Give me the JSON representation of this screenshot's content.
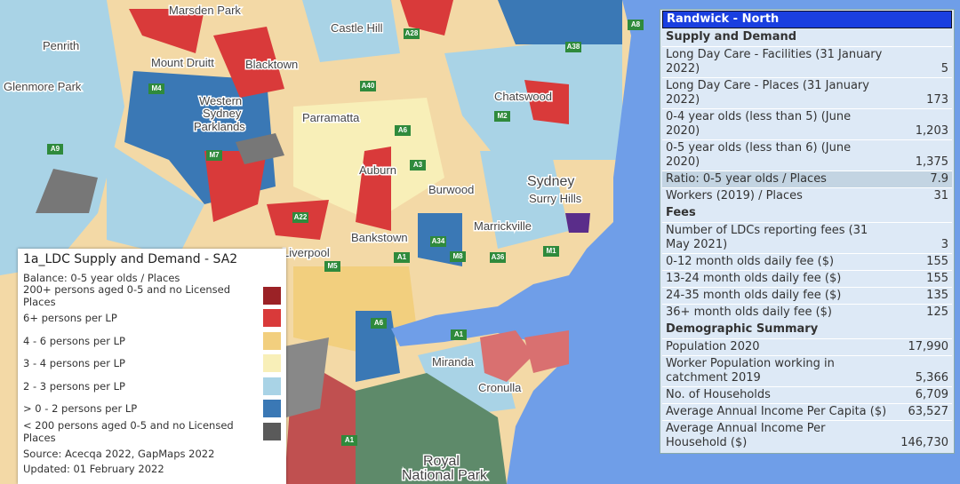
{
  "map": {
    "places": [
      "Marsden Park",
      "Castle Hill",
      "Penrith",
      "Mount Druitt",
      "Blacktown",
      "Glenmore Park",
      "Western",
      "Sydney",
      "Parklands",
      "Parramatta",
      "Chatswood",
      "Sydney",
      "Auburn",
      "Burwood",
      "Surry Hills",
      "Bankstown",
      "Marrickville",
      "Liverpool",
      "Miranda",
      "Cronulla",
      "Royal",
      "National Park"
    ],
    "roads": [
      "A9",
      "A28",
      "A38",
      "A8",
      "M4",
      "M7",
      "A40",
      "A6",
      "M2",
      "A3",
      "A22",
      "M5",
      "M8",
      "M1",
      "A34",
      "A36",
      "A1",
      "A6",
      "A1",
      "A1"
    ]
  },
  "legend": {
    "title": "1a_LDC Supply and Demand - SA2",
    "subtitle": "Balance: 0-5 year olds / Places",
    "items": [
      {
        "label": "200+ persons aged 0-5 and no Licensed Places",
        "color": "#9b2226"
      },
      {
        "label": "6+ persons per LP",
        "color": "#d93a3a"
      },
      {
        "label": "4 - 6 persons per LP",
        "color": "#f2cf7e"
      },
      {
        "label": "3 - 4 persons per LP",
        "color": "#f8efb8"
      },
      {
        "label": "2 - 3 persons per LP",
        "color": "#a9d3e6"
      },
      {
        "label": "> 0 - 2 persons per LP",
        "color": "#3a78b5"
      },
      {
        "label": "< 200 persons aged 0-5 and no Licensed Places",
        "color": "#5a5a5a"
      }
    ],
    "source": "Source: Acecqa 2022, GapMaps 2022",
    "updated": "Updated: 01 February 2022"
  },
  "panel": {
    "title": "Randwick - North",
    "sections": [
      {
        "heading": "Supply and Demand",
        "rows": [
          {
            "label": "Long Day Care - Facilities (31 January 2022)",
            "value": "5"
          },
          {
            "label": "Long Day Care - Places (31 January 2022)",
            "value": "173"
          },
          {
            "label": "0-4 year olds (less than 5) (June 2020)",
            "value": "1,203"
          },
          {
            "label": "0-5 year olds (less than 6) (June 2020)",
            "value": "1,375"
          },
          {
            "label": "Ratio: 0-5 year olds / Places",
            "value": "7.9",
            "highlight": true
          },
          {
            "label": "Workers (2019) / Places",
            "value": "31"
          }
        ]
      },
      {
        "heading": "Fees",
        "rows": [
          {
            "label": "Number of LDCs reporting fees (31 May 2021)",
            "value": "3"
          },
          {
            "label": "0-12 month olds daily fee ($)",
            "value": "155"
          },
          {
            "label": "13-24 month olds daily fee ($)",
            "value": "155"
          },
          {
            "label": "24-35 month olds daily fee ($)",
            "value": "135"
          },
          {
            "label": "36+ month olds daily fee ($)",
            "value": "125"
          }
        ]
      },
      {
        "heading": "Demographic Summary",
        "rows": [
          {
            "label": "Population 2020",
            "value": "17,990"
          },
          {
            "label": "Worker Population working in catchment 2019",
            "value": "5,366"
          },
          {
            "label": "No. of Households",
            "value": "6,709"
          },
          {
            "label": "Average Annual Income Per Capita ($)",
            "value": "63,527"
          },
          {
            "label": "Average Annual Income Per Household ($)",
            "value": "146,730"
          }
        ]
      }
    ]
  }
}
